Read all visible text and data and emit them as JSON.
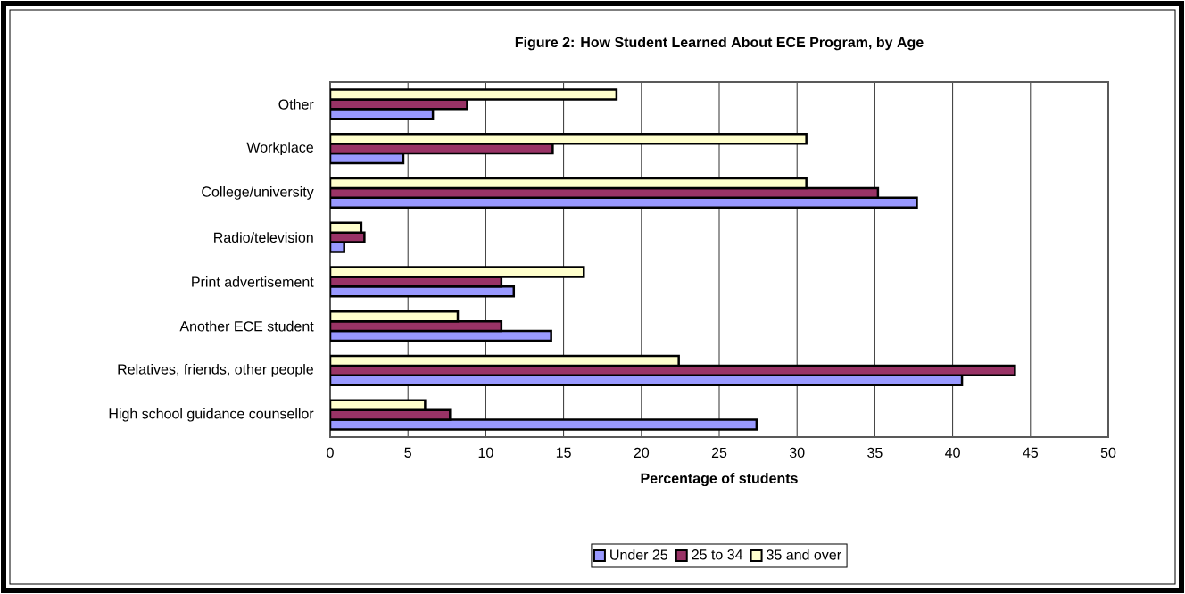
{
  "chart_data": {
    "type": "bar",
    "orientation": "horizontal",
    "title": "Figure 2: How Student Learned About ECE Program, by Age",
    "xlabel": "Percentage of students",
    "categories": [
      "Other",
      "Workplace",
      "College/university",
      "Radio/television",
      "Print advertisement",
      "Another ECE student",
      "Relatives, friends, other people",
      "High school guidance counsellor"
    ],
    "series": [
      {
        "name": "Under 25",
        "color": "#9999ff",
        "values": [
          6.6,
          4.7,
          37.7,
          0.9,
          11.8,
          14.2,
          40.6,
          27.4
        ]
      },
      {
        "name": "25 to 34",
        "color": "#993366",
        "values": [
          8.8,
          14.3,
          35.2,
          2.2,
          11.0,
          11.0,
          44.0,
          7.7
        ]
      },
      {
        "name": "35 and over",
        "color": "#ffffcc",
        "values": [
          18.4,
          30.6,
          30.6,
          2.0,
          16.3,
          8.2,
          22.4,
          6.1
        ]
      }
    ],
    "xlim": [
      0,
      50
    ],
    "xticks": [
      0,
      5,
      10,
      15,
      20,
      25,
      30,
      35,
      40,
      45,
      50
    ],
    "grid": "x",
    "legend": "bottom"
  }
}
